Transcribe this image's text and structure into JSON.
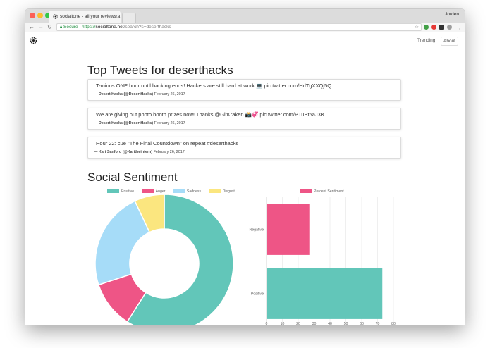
{
  "browser": {
    "tab_title": "socialtone - all your reviews a",
    "user_name": "Jorden",
    "secure_label": "Secure",
    "url_scheme": "https://",
    "url_host": "socialtone.net",
    "url_path": "/search?s=deserthacks"
  },
  "nav": {
    "links": [
      "Trending",
      "About"
    ]
  },
  "tweets_section": {
    "title": "Top Tweets for deserthacks",
    "tweets": [
      {
        "text": "T-minus ONE hour until hacking ends! Hackers are still hard at work 💻 pic.twitter.com/HdTgXXQj5Q",
        "author": "— Desert Hacks (@DesertHacks)",
        "date": "February 26, 2017"
      },
      {
        "text": "We are giving out photo booth prizes now! Thanks @GitKraken 📸💞 pic.twitter.com/PTuBt5aJXK",
        "author": "— Desert Hacks (@DesertHacks)",
        "date": "February 26, 2017"
      },
      {
        "text": "Hour 22: cue \"The Final Countdown\" on repeat #deserthacks",
        "author": "— Kari Sanford (@Karitheintern)",
        "date": "February 26, 2017"
      }
    ]
  },
  "sentiment_section": {
    "title": "Social Sentiment"
  },
  "chart_data": [
    {
      "type": "pie",
      "variant": "doughnut",
      "labels": [
        "Positive",
        "Anger",
        "Sadness",
        "Disgust"
      ],
      "values": [
        59,
        11,
        23,
        7
      ],
      "colors": [
        "#62c6b9",
        "#ee5586",
        "#a6dcf8",
        "#fbe67f"
      ],
      "legend_position": "top"
    },
    {
      "type": "bar",
      "orientation": "horizontal",
      "categories": [
        "Negative",
        "Positive"
      ],
      "series": [
        {
          "name": "Percent Sentiment",
          "values": [
            27,
            73
          ],
          "colors": [
            "#ee5586",
            "#62c6b9"
          ]
        }
      ],
      "xlim": [
        0,
        80
      ],
      "xticks": [
        0,
        10,
        20,
        30,
        40,
        50,
        60,
        70,
        80
      ],
      "grid": true,
      "legend_position": "top"
    }
  ],
  "colors": {
    "accent_green": "#62c6b9",
    "accent_pink": "#ee5586",
    "secure_green": "#1e8e3e"
  }
}
